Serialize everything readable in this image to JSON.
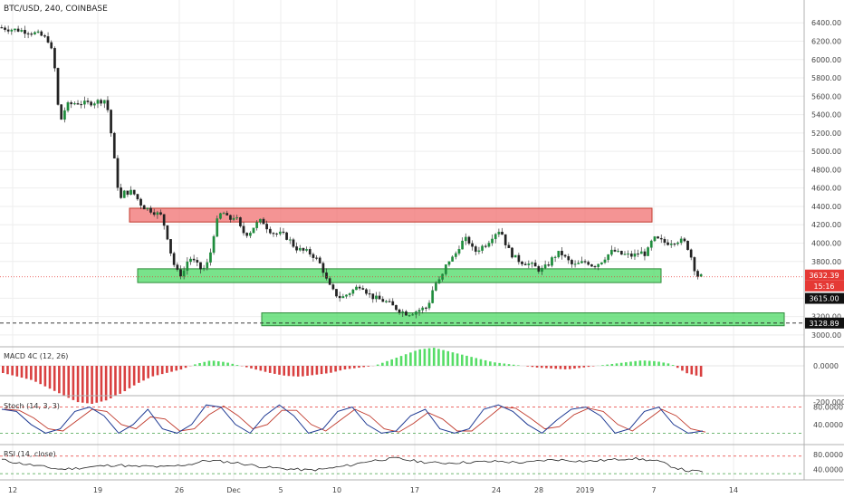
{
  "colors": {
    "up": "#26a69a",
    "up_body": "#1e8c3c",
    "down": "#222222",
    "support_zone": "#4cd964",
    "resistance_zone": "#f07070",
    "macd_pos": "#55dd66",
    "macd_neg": "#d94040",
    "stoch_k": "#1f3a93",
    "stoch_d": "#c0392b",
    "level_red": "#e53935",
    "level_green": "#43a047",
    "grid": "#eeeeee",
    "price_tag": "#e53935",
    "dark_tag": "#111111"
  },
  "header": {
    "symbol_title": "BTC/USD, 240, COINBASE"
  },
  "chart_data": {
    "type": "candlestick",
    "title": "BTC/USD, 240, COINBASE",
    "x_ticks": [
      "12",
      "19",
      "26",
      "Dec",
      "5",
      "10",
      "17",
      "24",
      "28",
      "2019",
      "7",
      "14"
    ],
    "price_axis": {
      "ticks": [
        "6400.00",
        "6200.00",
        "6000.00",
        "5800.00",
        "5600.00",
        "5400.00",
        "5200.00",
        "5000.00",
        "4800.00",
        "4600.00",
        "4400.00",
        "4200.00",
        "4000.00",
        "3800.00",
        "3400.00",
        "3200.00",
        "3000.00"
      ],
      "ylim": [
        2900,
        6550
      ]
    },
    "price_tags": {
      "current": "3632.39",
      "countdown": "15:16",
      "level_1": "3615.00",
      "level_2": "3128.89"
    },
    "zones": [
      {
        "type": "resistance",
        "top": 4380,
        "bottom": 4230
      },
      {
        "type": "support",
        "top": 3720,
        "bottom": 3570
      },
      {
        "type": "support",
        "top": 3240,
        "bottom": 3100
      }
    ],
    "close_path": [
      [
        0,
        6350
      ],
      [
        6,
        6330
      ],
      [
        12,
        6320
      ],
      [
        18,
        6300
      ],
      [
        24,
        6270
      ],
      [
        30,
        6200
      ],
      [
        33,
        5900
      ],
      [
        36,
        5300
      ],
      [
        40,
        5500
      ],
      [
        46,
        5530
      ],
      [
        52,
        5520
      ],
      [
        58,
        5540
      ],
      [
        63,
        5560
      ],
      [
        66,
        5400
      ],
      [
        68,
        5000
      ],
      [
        70,
        4800
      ],
      [
        72,
        4450
      ],
      [
        75,
        4550
      ],
      [
        80,
        4560
      ],
      [
        86,
        4400
      ],
      [
        92,
        4350
      ],
      [
        97,
        4300
      ],
      [
        100,
        4150
      ],
      [
        103,
        3900
      ],
      [
        106,
        3700
      ],
      [
        110,
        3650
      ],
      [
        114,
        3850
      ],
      [
        118,
        3780
      ],
      [
        122,
        3700
      ],
      [
        126,
        3800
      ],
      [
        130,
        4200
      ],
      [
        134,
        4350
      ],
      [
        138,
        4250
      ],
      [
        142,
        4300
      ],
      [
        146,
        4120
      ],
      [
        150,
        4100
      ],
      [
        154,
        4200
      ],
      [
        158,
        4250
      ],
      [
        162,
        4150
      ],
      [
        166,
        4100
      ],
      [
        170,
        4100
      ],
      [
        174,
        4050
      ],
      [
        178,
        3950
      ],
      [
        182,
        3920
      ],
      [
        186,
        3900
      ],
      [
        190,
        3850
      ],
      [
        194,
        3750
      ],
      [
        198,
        3550
      ],
      [
        202,
        3450
      ],
      [
        206,
        3400
      ],
      [
        210,
        3450
      ],
      [
        214,
        3500
      ],
      [
        218,
        3550
      ],
      [
        222,
        3450
      ],
      [
        226,
        3400
      ],
      [
        230,
        3380
      ],
      [
        234,
        3350
      ],
      [
        238,
        3300
      ],
      [
        242,
        3260
      ],
      [
        246,
        3230
      ],
      [
        250,
        3250
      ],
      [
        254,
        3280
      ],
      [
        258,
        3300
      ],
      [
        262,
        3550
      ],
      [
        266,
        3600
      ],
      [
        270,
        3800
      ],
      [
        274,
        3850
      ],
      [
        278,
        4000
      ],
      [
        282,
        4050
      ],
      [
        286,
        3900
      ],
      [
        290,
        3950
      ],
      [
        294,
        4000
      ],
      [
        298,
        4100
      ],
      [
        302,
        4150
      ],
      [
        306,
        3950
      ],
      [
        310,
        3850
      ],
      [
        314,
        3800
      ],
      [
        318,
        3780
      ],
      [
        322,
        3750
      ],
      [
        326,
        3700
      ],
      [
        330,
        3750
      ],
      [
        334,
        3850
      ],
      [
        338,
        3900
      ],
      [
        342,
        3820
      ],
      [
        346,
        3750
      ],
      [
        350,
        3780
      ],
      [
        354,
        3800
      ],
      [
        358,
        3750
      ],
      [
        362,
        3790
      ],
      [
        366,
        3860
      ],
      [
        370,
        3920
      ],
      [
        374,
        3880
      ],
      [
        378,
        3870
      ],
      [
        382,
        3860
      ],
      [
        386,
        3900
      ],
      [
        390,
        3880
      ],
      [
        394,
        4050
      ],
      [
        398,
        4030
      ],
      [
        402,
        4000
      ],
      [
        406,
        4020
      ],
      [
        410,
        4030
      ],
      [
        414,
        4000
      ],
      [
        418,
        3800
      ],
      [
        420,
        3650
      ],
      [
        424,
        3632
      ]
    ],
    "series": [
      {
        "name": "MACD 4C (12, 26)",
        "values": [
          -40,
          -60,
          -80,
          -120,
          -160,
          -200,
          -210,
          -190,
          -150,
          -100,
          -60,
          -40,
          -20,
          10,
          30,
          20,
          0,
          -20,
          -40,
          -55,
          -60,
          -50,
          -40,
          -20,
          -10,
          0,
          30,
          60,
          90,
          100,
          80,
          60,
          40,
          20,
          10,
          0,
          -10,
          -15,
          -20,
          -10,
          0,
          10,
          20,
          30,
          25,
          10,
          -40,
          -60
        ]
      },
      {
        "name": "Stoch (14, 3, 3)",
        "values": [
          75,
          70,
          40,
          20,
          30,
          70,
          80,
          60,
          20,
          40,
          75,
          30,
          20,
          40,
          85,
          80,
          40,
          20,
          60,
          85,
          60,
          20,
          30,
          70,
          80,
          40,
          20,
          25,
          60,
          75,
          30,
          20,
          30,
          75,
          85,
          70,
          40,
          20,
          50,
          75,
          80,
          60,
          20,
          30,
          70,
          80,
          40,
          20,
          25
        ]
      },
      {
        "name": "RSI (14, close)",
        "values": [
          62,
          55,
          50,
          45,
          40,
          42,
          45,
          48,
          50,
          46,
          47,
          45,
          48,
          52,
          60,
          58,
          55,
          50,
          45,
          42,
          40,
          38,
          40,
          45,
          50,
          58,
          62,
          65,
          60,
          56,
          54,
          55,
          56,
          57,
          58,
          56,
          55,
          60,
          62,
          60,
          58,
          60,
          62,
          65,
          62,
          58,
          45,
          36,
          35
        ]
      }
    ],
    "indicators": {
      "macd": {
        "title": "MACD 4C (12, 26)",
        "ticks": [
          "0.0000",
          "-200.0000"
        ]
      },
      "stoch": {
        "title": "Stoch (14, 3, 3)",
        "ticks": [
          "80.0000",
          "40.0000"
        ]
      },
      "rsi": {
        "title": "RSI (14, close)",
        "ticks": [
          "80.0000",
          "40.0000"
        ]
      }
    }
  }
}
